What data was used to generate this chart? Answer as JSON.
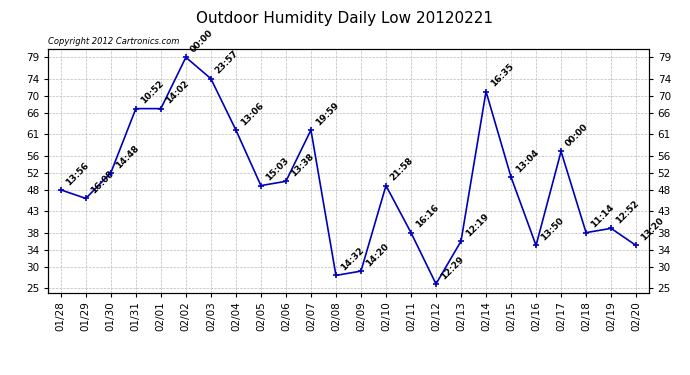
{
  "title": "Outdoor Humidity Daily Low 20120221",
  "copyright_text": "Copyright 2012 Cartronics.com",
  "line_color": "#0000BB",
  "marker_color": "#0000BB",
  "bg_color": "#ffffff",
  "grid_color": "#bbbbbb",
  "points": [
    {
      "date": "01/28",
      "value": 48,
      "label": "13:56"
    },
    {
      "date": "01/29",
      "value": 46,
      "label": "16:08"
    },
    {
      "date": "01/30",
      "value": 52,
      "label": "14:48"
    },
    {
      "date": "01/31",
      "value": 67,
      "label": "10:52"
    },
    {
      "date": "02/01",
      "value": 67,
      "label": "14:02"
    },
    {
      "date": "02/02",
      "value": 79,
      "label": "00:00"
    },
    {
      "date": "02/03",
      "value": 74,
      "label": "23:57"
    },
    {
      "date": "02/04",
      "value": 62,
      "label": "13:06"
    },
    {
      "date": "02/05",
      "value": 49,
      "label": "15:03"
    },
    {
      "date": "02/06",
      "value": 50,
      "label": "13:38"
    },
    {
      "date": "02/07",
      "value": 62,
      "label": "19:59"
    },
    {
      "date": "02/08",
      "value": 28,
      "label": "14:32"
    },
    {
      "date": "02/09",
      "value": 29,
      "label": "14:20"
    },
    {
      "date": "02/10",
      "value": 49,
      "label": "21:58"
    },
    {
      "date": "02/11",
      "value": 38,
      "label": "16:16"
    },
    {
      "date": "02/12",
      "value": 26,
      "label": "12:29"
    },
    {
      "date": "02/13",
      "value": 36,
      "label": "12:19"
    },
    {
      "date": "02/14",
      "value": 71,
      "label": "16:35"
    },
    {
      "date": "02/15",
      "value": 51,
      "label": "13:04"
    },
    {
      "date": "02/16",
      "value": 35,
      "label": "13:50"
    },
    {
      "date": "02/17",
      "value": 57,
      "label": "00:00"
    },
    {
      "date": "02/18",
      "value": 38,
      "label": "11:14"
    },
    {
      "date": "02/19",
      "value": 39,
      "label": "12:52"
    },
    {
      "date": "02/20",
      "value": 35,
      "label": "13:20"
    }
  ],
  "ylim": [
    24,
    81
  ],
  "yticks": [
    25,
    30,
    34,
    38,
    43,
    48,
    52,
    56,
    61,
    66,
    70,
    74,
    79
  ],
  "title_fontsize": 11,
  "label_fontsize": 6.5,
  "tick_fontsize": 7.5,
  "copyright_fontsize": 6
}
